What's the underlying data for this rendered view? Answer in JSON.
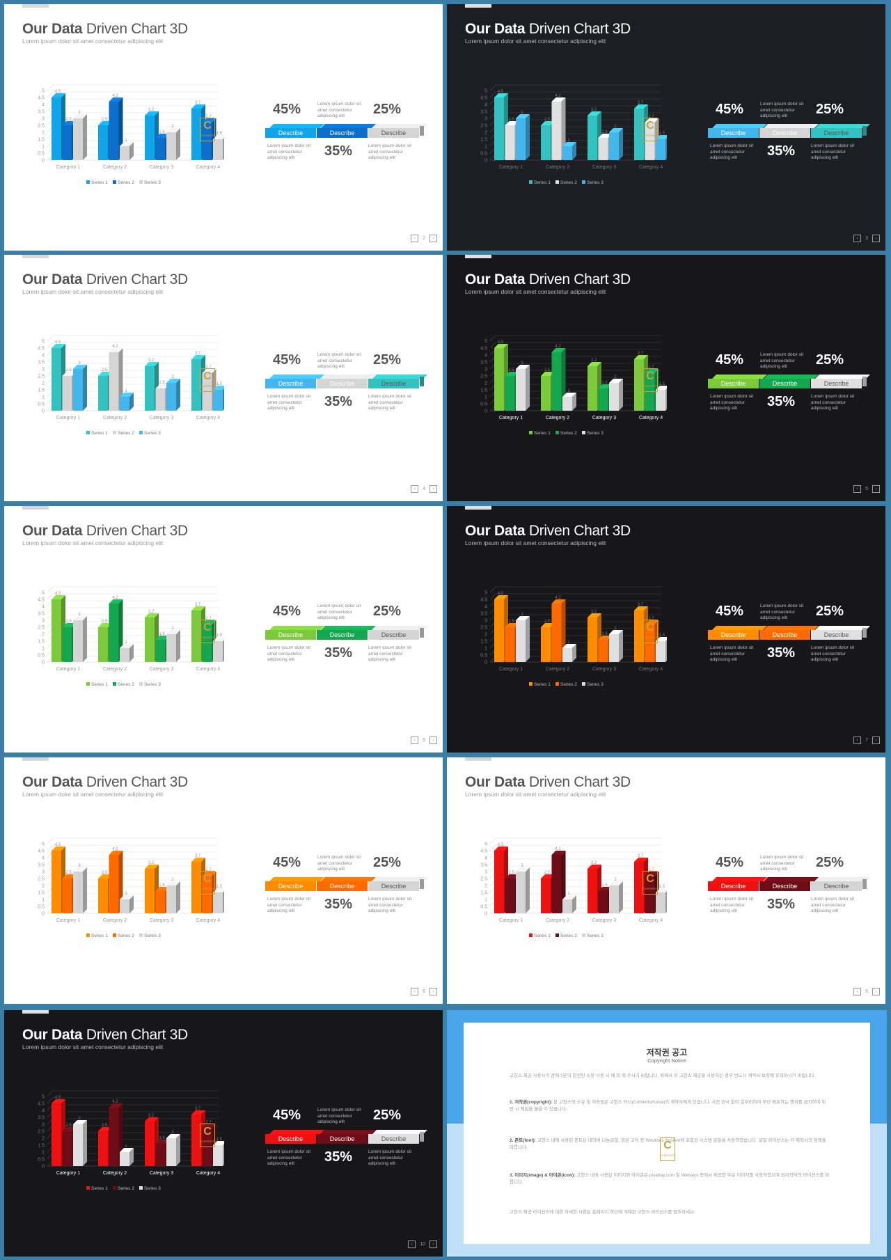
{
  "slides": [
    {
      "page": "2",
      "title_bold": "Our Data",
      "title_rest": " Driven Chart 3D",
      "subtitle": "Lorem ipsum dolor sit amet consectetur adipiscing elit",
      "theme": "light",
      "colors": [
        "#12a4e8",
        "#0b6fcb",
        "#d5d5d5"
      ]
    },
    {
      "page": "3",
      "title_bold": "Our Data",
      "title_rest": " Driven Chart 3D",
      "subtitle": "Lorem ipsum dolor sit amet consectetur adipiscing elit",
      "theme": "dark",
      "colors": [
        "#33c2c0",
        "#e0e0e0",
        "#44b6ee"
      ]
    },
    {
      "page": "4",
      "title_bold": "Our Data",
      "title_rest": " Driven Chart 3D",
      "subtitle": "Lorem ipsum dolor sit amet consectetur adipiscing elit",
      "theme": "light",
      "colors": [
        "#33c2c0",
        "#d5d5d5",
        "#44b6ee"
      ]
    },
    {
      "page": "5",
      "title_bold": "Our Data",
      "title_rest": " Driven Chart 3D",
      "subtitle": "Lorem ipsum dolor sit amet consectetur adipiscing elit",
      "theme": "black",
      "colors": [
        "#7cc93c",
        "#15a650",
        "#e0e0e0"
      ]
    },
    {
      "page": "6",
      "title_bold": "Our Data",
      "title_rest": " Driven Chart 3D",
      "subtitle": "Lorem ipsum dolor sit amet consectetur adipiscing elit",
      "theme": "light",
      "colors": [
        "#7cc93c",
        "#15a650",
        "#d5d5d5"
      ]
    },
    {
      "page": "7",
      "title_bold": "Our Data",
      "title_rest": " Driven Chart 3D",
      "subtitle": "Lorem ipsum dolor sit amet consectetur adipiscing elit",
      "theme": "black",
      "colors": [
        "#ff8c00",
        "#ff6a00",
        "#e0e0e0"
      ]
    },
    {
      "page": "8",
      "title_bold": "Our Data",
      "title_rest": " Driven Chart 3D",
      "subtitle": "Lorem ipsum dolor sit amet consectetur adipiscing elit",
      "theme": "light",
      "colors": [
        "#ff8c00",
        "#ff6a00",
        "#d5d5d5"
      ]
    },
    {
      "page": "9",
      "title_bold": "Our Data",
      "title_rest": " Driven Chart 3D",
      "subtitle": "Lorem ipsum dolor sit amet consectetur adipiscing elit",
      "theme": "light",
      "colors": [
        "#ee1111",
        "#6e0d18",
        "#d5d5d5"
      ]
    },
    {
      "page": "10",
      "title_bold": "Our Data",
      "title_rest": " Driven Chart 3D",
      "subtitle": "Lorem ipsum dolor sit amet consectetur adipiscing elit",
      "theme": "black",
      "colors": [
        "#ee1111",
        "#6e0d18",
        "#e0e0e0"
      ]
    }
  ],
  "stats": {
    "pct_left": "45%",
    "pct_right": "25%",
    "pct_bottom": "35%",
    "note_top": "Lorem ipsum dolor sit amet consectetur adipiscing elit",
    "note_left": "Lorem ipsum dolor sit amet consectetur adipiscing elit",
    "note_right": "Lorem ipsum dolor sit amet consectetur adipiscing elit",
    "seg_label": "Describe"
  },
  "logo": {
    "letter": "C",
    "text": "CONTENTS"
  },
  "chart_data": {
    "type": "bar",
    "categories": [
      "Category 1",
      "Category 2",
      "Category 3",
      "Category 4"
    ],
    "series": [
      {
        "name": "Series 1",
        "values": [
          4.5,
          2.5,
          3.2,
          3.7
        ]
      },
      {
        "name": "Series 2",
        "values": [
          2.5,
          4.2,
          1.6,
          2.7
        ]
      },
      {
        "name": "Series 3",
        "values": [
          3.0,
          1.0,
          2.0,
          1.5
        ]
      }
    ],
    "yticks": [
      "0",
      "0.5",
      "1",
      "1.5",
      "2",
      "2.5",
      "3",
      "3.5",
      "4",
      "4.5",
      "5"
    ],
    "ylim": [
      0,
      5
    ],
    "legend": "bottom"
  },
  "notice": {
    "title": "저작권 공고",
    "subtitle": "Copyright Notice",
    "p1": "고헌스 제공 사용사기 관에 1분의 한정된 소장 사용 시 에 의 에 주사기 바랍니다. 위해서 이 고헌스 제공을 사용하는 경우 반드시 계약서 보장에 유의하시기 바랍니다.",
    "p2_head": "1. 저작권(copyright):",
    "p2": "본 고헌스의 소유 및 저작권은 고헌스 타나(ContentsKorea)의 계약사에게 있습니다. 사전 승낙 없이 갈무리하여 무단 배포하는 행위를 금지하며 위반 시 책임을 물을 수 있습니다.",
    "p3_head": "2. 폰트(font):",
    "p3": "고헌스 내에 사용된 폰트는 네이버 나눔글꼴, 맑은 고딕 등 Windows System에 포함된 시스템 글꼴을 사용하였습니다. 글꼴 라이선스는 각 제작사의 정책을 따릅니다.",
    "p4_head": "3. 이미지(image) & 아이콘(icon):",
    "p4": "고헌스 내에 사용된 이미지와 아이콘은 pixabay.com 및 Webalys 등에서 제공한 무료 이미지를 사용하였으며 원저작자의 라이선스를 따릅니다.",
    "p5": "고헌스 제공 라이선스에 대한 자세한 사항은 홈페이지 하단에 게재된 고헌스 라이선스를 참조하세요."
  }
}
